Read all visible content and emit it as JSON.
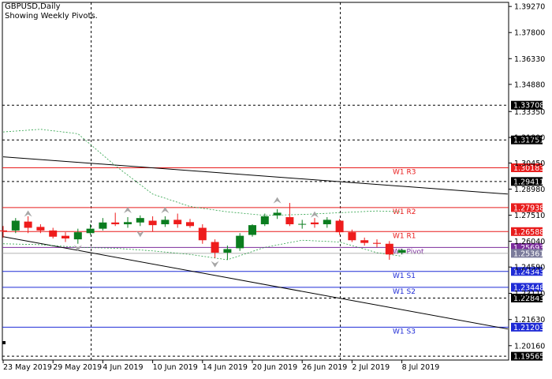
{
  "header": {
    "title": "GBPUSD,Daily",
    "subtitle": "Showing Weekly Pivots."
  },
  "colors": {
    "bull": "#0b7d1f",
    "bear": "#ee1c1c",
    "resistance": "#e81c1c",
    "support": "#1f2bd6",
    "pivot": "#7b2d9c",
    "price_label": "#7b7b9b",
    "ma": "#2aa046",
    "grid": "#000000"
  },
  "chart_data": {
    "type": "candlestick",
    "symbol": "GBPUSD",
    "timeframe": "Daily",
    "ylim": [
      1.1935,
      1.395
    ],
    "y_ticks": [
      "1.39270",
      "1.37800",
      "1.36330",
      "1.34880",
      "1.33350",
      "1.31890",
      "1.30450",
      "1.28980",
      "1.27510",
      "1.26040",
      "1.24590",
      "1.23110",
      "1.21630",
      "1.20160"
    ],
    "x_ticks": [
      {
        "label": "23 May 2019",
        "index": 0
      },
      {
        "label": "29 May 2019",
        "index": 4
      },
      {
        "label": "4 Jun 2019",
        "index": 8
      },
      {
        "label": "10 Jun 2019",
        "index": 12
      },
      {
        "label": "14 Jun 2019",
        "index": 16
      },
      {
        "label": "20 Jun 2019",
        "index": 20
      },
      {
        "label": "26 Jun 2019",
        "index": 24
      },
      {
        "label": "2 Jul 2019",
        "index": 28
      },
      {
        "label": "8 Jul 2019",
        "index": 32
      }
    ],
    "candles": [
      {
        "o": 1.2665,
        "h": 1.269,
        "l": 1.2625,
        "c": 1.266
      },
      {
        "o": 1.2665,
        "h": 1.2735,
        "l": 1.265,
        "c": 1.272
      },
      {
        "o": 1.2715,
        "h": 1.2745,
        "l": 1.265,
        "c": 1.268
      },
      {
        "o": 1.2685,
        "h": 1.27,
        "l": 1.265,
        "c": 1.2665
      },
      {
        "o": 1.2665,
        "h": 1.268,
        "l": 1.262,
        "c": 1.263
      },
      {
        "o": 1.2635,
        "h": 1.2655,
        "l": 1.26,
        "c": 1.262
      },
      {
        "o": 1.2615,
        "h": 1.2675,
        "l": 1.259,
        "c": 1.2655
      },
      {
        "o": 1.265,
        "h": 1.27,
        "l": 1.264,
        "c": 1.2675
      },
      {
        "o": 1.2675,
        "h": 1.2735,
        "l": 1.2665,
        "c": 1.271
      },
      {
        "o": 1.271,
        "h": 1.2765,
        "l": 1.269,
        "c": 1.27
      },
      {
        "o": 1.27,
        "h": 1.274,
        "l": 1.268,
        "c": 1.2712
      },
      {
        "o": 1.271,
        "h": 1.275,
        "l": 1.269,
        "c": 1.2735
      },
      {
        "o": 1.272,
        "h": 1.2745,
        "l": 1.266,
        "c": 1.2695
      },
      {
        "o": 1.27,
        "h": 1.2745,
        "l": 1.2685,
        "c": 1.2725
      },
      {
        "o": 1.2725,
        "h": 1.276,
        "l": 1.268,
        "c": 1.27
      },
      {
        "o": 1.2712,
        "h": 1.273,
        "l": 1.268,
        "c": 1.269
      },
      {
        "o": 1.268,
        "h": 1.27,
        "l": 1.259,
        "c": 1.261
      },
      {
        "o": 1.26,
        "h": 1.2615,
        "l": 1.251,
        "c": 1.254
      },
      {
        "o": 1.254,
        "h": 1.258,
        "l": 1.25,
        "c": 1.256
      },
      {
        "o": 1.2565,
        "h": 1.265,
        "l": 1.255,
        "c": 1.2635
      },
      {
        "o": 1.264,
        "h": 1.27,
        "l": 1.263,
        "c": 1.2695
      },
      {
        "o": 1.27,
        "h": 1.276,
        "l": 1.269,
        "c": 1.2745
      },
      {
        "o": 1.275,
        "h": 1.2785,
        "l": 1.273,
        "c": 1.2765
      },
      {
        "o": 1.274,
        "h": 1.282,
        "l": 1.269,
        "c": 1.27
      },
      {
        "o": 1.27,
        "h": 1.2725,
        "l": 1.2675,
        "c": 1.2702
      },
      {
        "o": 1.271,
        "h": 1.2735,
        "l": 1.268,
        "c": 1.27
      },
      {
        "o": 1.27,
        "h": 1.274,
        "l": 1.268,
        "c": 1.2725
      },
      {
        "o": 1.272,
        "h": 1.273,
        "l": 1.264,
        "c": 1.2655
      },
      {
        "o": 1.2655,
        "h": 1.267,
        "l": 1.26,
        "c": 1.261
      },
      {
        "o": 1.261,
        "h": 1.2625,
        "l": 1.258,
        "c": 1.2595
      },
      {
        "o": 1.2595,
        "h": 1.2615,
        "l": 1.257,
        "c": 1.259
      },
      {
        "o": 1.259,
        "h": 1.2605,
        "l": 1.25,
        "c": 1.253
      },
      {
        "o": 1.254,
        "h": 1.256,
        "l": 1.253,
        "c": 1.2555
      }
    ],
    "levels": [
      {
        "value": 1.33708,
        "label": "1.33708",
        "kind": "grid"
      },
      {
        "value": 1.31751,
        "label": "1.31751",
        "kind": "grid"
      },
      {
        "value": 1.30183,
        "label": "1.30183",
        "kind": "resistance",
        "name": "W1  R3"
      },
      {
        "value": 1.29411,
        "label": "1.29411",
        "kind": "grid"
      },
      {
        "value": 1.27938,
        "label": "1.27938",
        "kind": "resistance",
        "name": "W1  R2"
      },
      {
        "value": 1.26588,
        "label": "1.26588",
        "kind": "resistance",
        "name": "W1  R1"
      },
      {
        "value": 1.25693,
        "label": "1.25693",
        "kind": "pivot",
        "name": "W1  Pivot"
      },
      {
        "value": 1.25361,
        "label": "1.25361",
        "kind": "price"
      },
      {
        "value": 1.24343,
        "label": "1.24343",
        "kind": "support",
        "name": "W1  S1"
      },
      {
        "value": 1.23448,
        "label": "1.23448",
        "kind": "support",
        "name": "W1  S2"
      },
      {
        "value": 1.22843,
        "label": "1.22843",
        "kind": "grid"
      },
      {
        "value": 1.21203,
        "label": "1.21203",
        "kind": "support",
        "name": "W1  S3"
      },
      {
        "value": 1.19565,
        "label": "1.19565",
        "kind": "grid"
      }
    ],
    "channel": [
      {
        "i0": 0,
        "y0": 1.308,
        "i1": 40.5,
        "y1": 1.287
      },
      {
        "i0": 0,
        "y0": 1.263,
        "i1": 40.5,
        "y1": 1.211
      }
    ],
    "envelope": [
      {
        "points": [
          [
            0,
            1.322
          ],
          [
            3,
            1.3235
          ],
          [
            6,
            1.321
          ],
          [
            9,
            1.303
          ],
          [
            12,
            1.287
          ],
          [
            15,
            1.28
          ],
          [
            18,
            1.277
          ],
          [
            21,
            1.275
          ],
          [
            24,
            1.2755
          ],
          [
            27,
            1.2765
          ],
          [
            30,
            1.2775
          ],
          [
            32,
            1.277
          ]
        ]
      },
      {
        "points": [
          [
            0,
            1.259
          ],
          [
            3,
            1.2585
          ],
          [
            6,
            1.257
          ],
          [
            9,
            1.2565
          ],
          [
            12,
            1.255
          ],
          [
            15,
            1.253
          ],
          [
            18,
            1.25
          ],
          [
            21,
            1.257
          ],
          [
            24,
            1.261
          ],
          [
            27,
            1.26
          ],
          [
            30,
            1.254
          ],
          [
            32,
            1.252
          ]
        ]
      }
    ],
    "fractals_up": [
      [
        2,
        1.276
      ],
      [
        10,
        1.278
      ],
      [
        13,
        1.278
      ],
      [
        22,
        1.2835
      ],
      [
        25,
        1.2755
      ]
    ],
    "fractals_down": [
      [
        6,
        1.2565
      ],
      [
        11,
        1.2645
      ],
      [
        17,
        1.2475
      ]
    ]
  }
}
